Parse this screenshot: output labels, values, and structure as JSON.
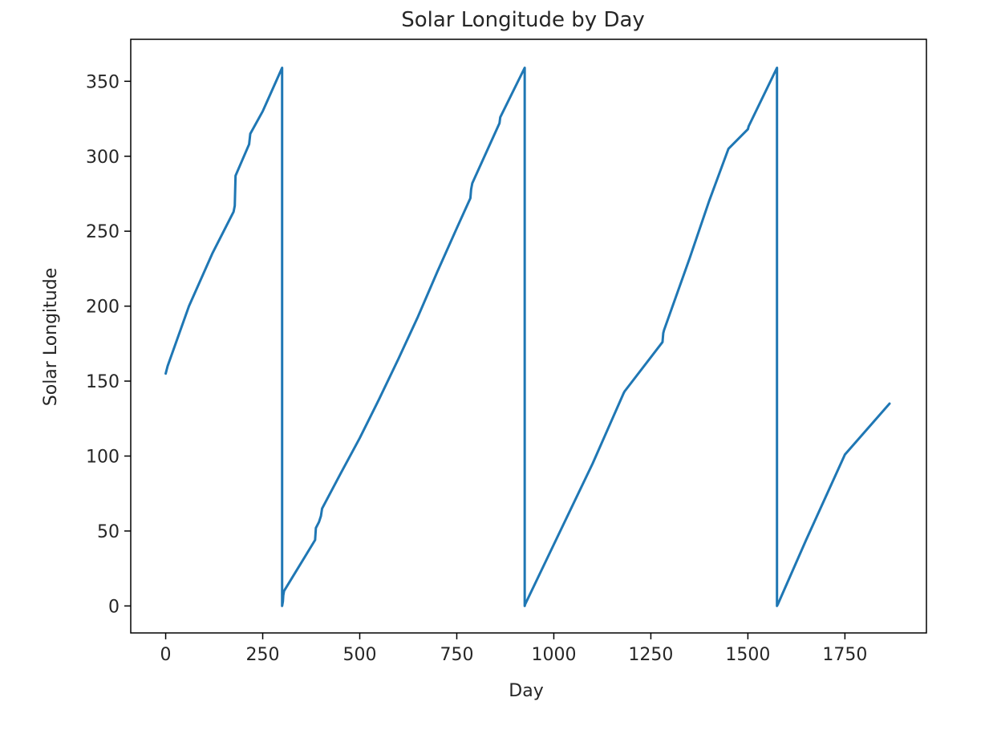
{
  "chart_data": {
    "type": "line",
    "title": "Solar Longitude by Day",
    "xlabel": "Day",
    "ylabel": "Solar Longitude",
    "xlim": [
      -90,
      1960
    ],
    "ylim": [
      -18,
      378
    ],
    "xticks": [
      0,
      250,
      500,
      750,
      1000,
      1250,
      1500,
      1750
    ],
    "yticks": [
      0,
      50,
      100,
      150,
      200,
      250,
      300,
      350
    ],
    "xtick_labels": [
      "0",
      "250",
      "500",
      "750",
      "1000",
      "1250",
      "1500",
      "1750"
    ],
    "ytick_labels": [
      "0",
      "50",
      "100",
      "150",
      "200",
      "250",
      "300",
      "350"
    ],
    "grid": false,
    "line_color": "#1f77b4",
    "series": [
      {
        "x": [
          0,
          5,
          60,
          120,
          175,
          178,
          180,
          215,
          218,
          250,
          300,
          300,
          302,
          303,
          305,
          385,
          387,
          395,
          400,
          403,
          450,
          500,
          550,
          600,
          650,
          700,
          750,
          785,
          787,
          790,
          860,
          862,
          925,
          925,
          926,
          1000,
          1100,
          1180,
          1182,
          1280,
          1282,
          1284,
          1350,
          1400,
          1450,
          1500,
          1502,
          1575,
          1575,
          1577,
          1650,
          1750,
          1865
        ],
        "y": [
          155,
          160,
          200,
          235,
          263,
          267,
          287,
          308,
          315,
          330,
          359,
          0,
          3,
          7,
          10,
          44,
          52,
          56,
          60,
          65,
          88,
          112,
          138,
          165,
          193,
          223,
          252,
          272,
          278,
          282,
          322,
          326,
          359,
          0,
          1,
          41,
          95,
          142,
          143,
          176,
          182,
          184,
          232,
          270,
          305,
          318,
          320,
          359,
          0,
          1,
          44,
          101,
          135
        ]
      }
    ]
  }
}
